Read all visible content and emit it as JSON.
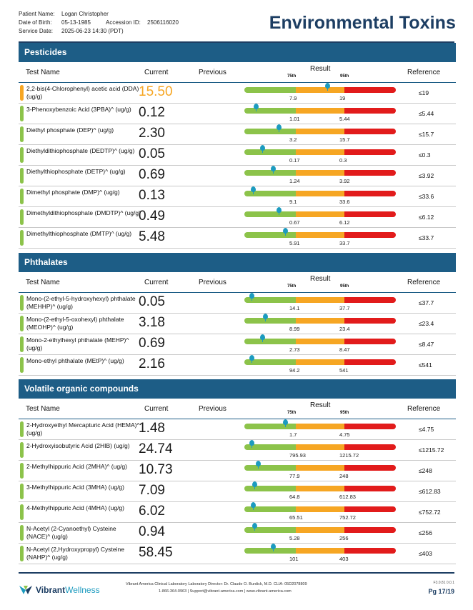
{
  "patient": {
    "name_label": "Patient Name:",
    "name": "Logan Christopher",
    "dob_label": "Date of Birth:",
    "dob": "05-13-1985",
    "accession_label": "Accession ID:",
    "accession": "2506116020",
    "service_label": "Service Date:",
    "service": "2025-06-23 14:30 (PDT)"
  },
  "title": "Environmental Toxins",
  "columns": {
    "test": "Test Name",
    "current": "Current",
    "previous": "Previous",
    "result": "Result",
    "p75": "75th",
    "p95": "95th",
    "reference": "Reference"
  },
  "sections": [
    {
      "title": "Pesticides",
      "rows": [
        {
          "name": "2,2-bis(4-Chlorophenyl) acetic acid (DDA) (ug/g)",
          "current": "15.50",
          "status": "elevated",
          "p75": "7.9",
          "p95": "19",
          "ref": "≤19",
          "marker": 0.55
        },
        {
          "name": "3-Phenoxybenzoic Acid (3PBA)^ (ug/g)",
          "current": "0.12",
          "status": "normal",
          "p75": "1.01",
          "p95": "5.44",
          "ref": "≤5.44",
          "marker": 0.08
        },
        {
          "name": "Diethyl phosphate (DEP)^ (ug/g)",
          "current": "2.30",
          "status": "normal",
          "p75": "3.2",
          "p95": "15.7",
          "ref": "≤15.7",
          "marker": 0.23
        },
        {
          "name": "Diethyldithiophosphate (DEDTP)^ (ug/g)",
          "current": "0.05",
          "status": "normal",
          "p75": "0.17",
          "p95": "0.3",
          "ref": "≤0.3",
          "marker": 0.12
        },
        {
          "name": "Diethylthiophosphate (DETP)^ (ug/g)",
          "current": "0.69",
          "status": "normal",
          "p75": "1.24",
          "p95": "3.92",
          "ref": "≤3.92",
          "marker": 0.19
        },
        {
          "name": "Dimethyl phosphate (DMP)^ (ug/g)",
          "current": "0.13",
          "status": "normal",
          "p75": "9.1",
          "p95": "33.6",
          "ref": "≤33.6",
          "marker": 0.06
        },
        {
          "name": "Dimethyldithiophosphate (DMDTP)^ (ug/g)",
          "current": "0.49",
          "status": "normal",
          "p75": "0.67",
          "p95": "6.12",
          "ref": "≤6.12",
          "marker": 0.23
        },
        {
          "name": "Dimethylthiophosphate (DMTP)^ (ug/g)",
          "current": "5.48",
          "status": "normal",
          "p75": "5.91",
          "p95": "33.7",
          "ref": "≤33.7",
          "marker": 0.27
        }
      ]
    },
    {
      "title": "Phthalates",
      "rows": [
        {
          "name": "Mono-(2-ethyl-5-hydroxyhexyl) phthalate (MEHHP)^ (ug/g)",
          "current": "0.05",
          "status": "normal",
          "p75": "14.1",
          "p95": "37.7",
          "ref": "≤37.7",
          "marker": 0.05
        },
        {
          "name": "Mono-(2-ethyl-5-oxohexyl) phthalate (MEOHP)^ (ug/g)",
          "current": "3.18",
          "status": "normal",
          "p75": "8.99",
          "p95": "23.4",
          "ref": "≤23.4",
          "marker": 0.14
        },
        {
          "name": "Mono-2-ethylhexyl phthalate (MEHP)^ (ug/g)",
          "current": "0.69",
          "status": "normal",
          "p75": "2.73",
          "p95": "8.47",
          "ref": "≤8.47",
          "marker": 0.12
        },
        {
          "name": "Mono-ethyl phthalate (MEtP)^ (ug/g)",
          "current": "2.16",
          "status": "normal",
          "p75": "94.2",
          "p95": "541",
          "ref": "≤541",
          "marker": 0.05
        }
      ]
    },
    {
      "title": "Volatile organic compounds",
      "rows": [
        {
          "name": "2-Hydroxyethyl Mercapturic Acid (HEMA)^ (ug/g)",
          "current": "1.48",
          "status": "normal",
          "p75": "1.7",
          "p95": "4.75",
          "ref": "≤4.75",
          "marker": 0.27
        },
        {
          "name": "2-Hydroxyisobutyric Acid (2HIB) (ug/g)",
          "current": "24.74",
          "status": "normal",
          "p75": "795.93",
          "p95": "1215.72",
          "ref": "≤1215.72",
          "marker": 0.05
        },
        {
          "name": "2-Methylhippuric Acid (2MHA)^ (ug/g)",
          "current": "10.73",
          "status": "normal",
          "p75": "77.9",
          "p95": "248",
          "ref": "≤248",
          "marker": 0.09
        },
        {
          "name": "3-Methylhippuric Acid (3MHA) (ug/g)",
          "current": "7.09",
          "status": "normal",
          "p75": "64.8",
          "p95": "612.83",
          "ref": "≤612.83",
          "marker": 0.07
        },
        {
          "name": "4-Methylhippuric Acid (4MHA) (ug/g)",
          "current": "6.02",
          "status": "normal",
          "p75": "65.51",
          "p95": "752.72",
          "ref": "≤752.72",
          "marker": 0.06
        },
        {
          "name": "N-Acetyl (2-Cyanoethyl) Cysteine (NACE)^ (ug/g)",
          "current": "0.94",
          "status": "normal",
          "p75": "5.28",
          "p95": "256",
          "ref": "≤256",
          "marker": 0.07
        },
        {
          "name": "N-Acetyl (2,Hydroxypropyl) Cysteine (NAHP)^ (ug/g)",
          "current": "58.45",
          "status": "normal",
          "p75": "101",
          "p95": "403",
          "ref": "≤403",
          "marker": 0.19
        }
      ]
    }
  ],
  "footer": {
    "brand_a": "Vibrant",
    "brand_b": "Wellness",
    "lab": "Vibrant America Clinical Laboratory Laboratory Director: Dr. Claude O. Burdick, M.D. CLIA: 05D2078809",
    "contact": "1-866-364-0963 | Support@vibrant-america.com | www.vibrant-america.com",
    "page": "Pg 17/19",
    "version": "F3.0.81 0.0.1"
  },
  "colors": {
    "navy": "#1d3e63",
    "section": "#1d5d86",
    "green": "#8cc34a",
    "orange": "#f6a623",
    "red": "#e21b1b",
    "marker": "#1c9bbf"
  }
}
